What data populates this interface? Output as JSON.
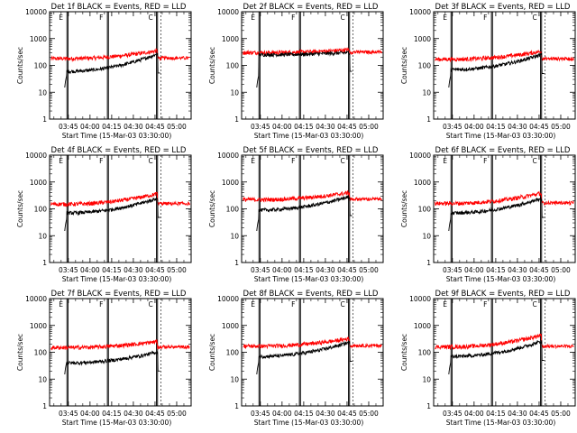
{
  "chart_data": {
    "type": "line",
    "layout": "3x3 grid of log-scale time series panels",
    "yscale": "log",
    "ylim": [
      1,
      10000
    ],
    "yticks": [
      "1",
      "10",
      "100",
      "1000",
      "10000"
    ],
    "ylabel": "Counts/sec",
    "xlabel": "Start Time (15-Mar-03 03:30:00)",
    "xlim": [
      "03:32",
      "05:10"
    ],
    "xticks": [
      "03:45",
      "04:00",
      "04:15",
      "04:30",
      "04:45",
      "05:00"
    ],
    "markers": [
      {
        "label": "E",
        "time": "03:44"
      },
      {
        "label": "F",
        "time": "04:12"
      },
      {
        "label": "C",
        "time": "04:46"
      }
    ],
    "panels": [
      {
        "title": "Det 1f BLACK = Events, RED = LLD",
        "red_level": 180,
        "black_level": 60,
        "black_end": 260,
        "red_end": 350
      },
      {
        "title": "Det 2f BLACK = Events, RED = LLD",
        "red_level": 300,
        "black_level": 250,
        "black_end": 300,
        "red_end": 380
      },
      {
        "title": "Det 3f BLACK = Events, RED = LLD",
        "red_level": 170,
        "black_level": 70,
        "black_end": 250,
        "red_end": 330
      },
      {
        "title": "Det 4f BLACK = Events, RED = LLD",
        "red_level": 150,
        "black_level": 70,
        "black_end": 240,
        "red_end": 360
      },
      {
        "title": "Det 5f BLACK = Events, RED = LLD",
        "red_level": 220,
        "black_level": 90,
        "black_end": 280,
        "red_end": 400
      },
      {
        "title": "Det 6f BLACK = Events, RED = LLD",
        "red_level": 160,
        "black_level": 70,
        "black_end": 240,
        "red_end": 380
      },
      {
        "title": "Det 7f BLACK = Events, RED = LLD",
        "red_level": 150,
        "black_level": 40,
        "black_end": 100,
        "red_end": 250
      },
      {
        "title": "Det 8f BLACK = Events, RED = LLD",
        "red_level": 170,
        "black_level": 70,
        "black_end": 230,
        "red_end": 320
      },
      {
        "title": "Det 9f BLACK = Events, RED = LLD",
        "red_level": 160,
        "black_level": 70,
        "black_end": 250,
        "red_end": 420
      }
    ],
    "series": [
      {
        "name": "Events",
        "color": "#000000"
      },
      {
        "name": "LLD",
        "color": "#ff0000"
      }
    ]
  }
}
